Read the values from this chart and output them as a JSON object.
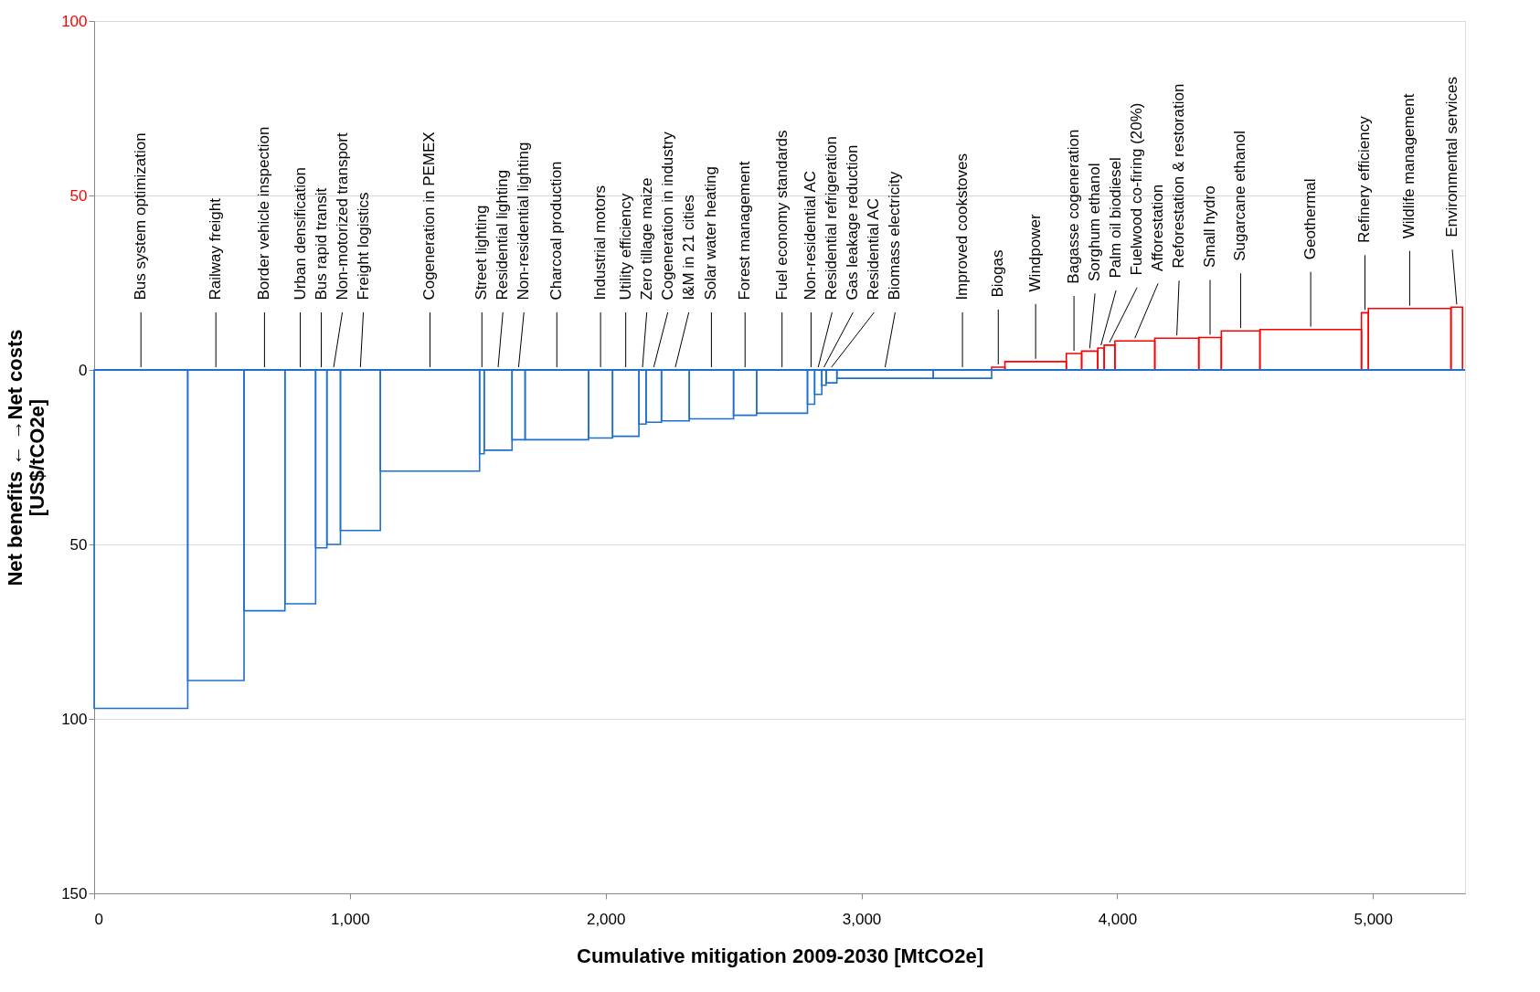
{
  "chart_data": {
    "type": "bar",
    "xlabel": "Cumulative mitigation 2009-2030 [MtCO2e]",
    "ylabel": "Net benefits ←      →Net costs\n[US$/tCO2e]",
    "x": [
      183,
      476,
      666,
      806,
      888,
      936.5,
      1041,
      1313,
      1516,
      1579.5,
      1659.5,
      1809,
      1980,
      2078.5,
      2144,
      2188,
      2272.5,
      2413.5,
      2545,
      2689.5,
      2803,
      2831,
      2853.5,
      2883,
      3092.5,
      3395,
      3535,
      3681,
      3831,
      3892.5,
      3936.5,
      3970,
      4069,
      4233,
      4363,
      4482.5,
      4756.5,
      4968.5,
      5143.5,
      5327.5
    ],
    "values": [
      -97,
      -89,
      -69,
      -67,
      -51,
      -50,
      -46,
      -29,
      -24,
      -23,
      -20,
      -20,
      -19.5,
      -19,
      -15.5,
      -15,
      -14.6,
      -14,
      -13,
      -12.4,
      -9.8,
      -7,
      -4.4,
      -3.7,
      -2.4,
      -2.4,
      0.8,
      2.4,
      4.7,
      5.4,
      6.3,
      7.1,
      8.3,
      9.1,
      9.3,
      11.2,
      11.6,
      16.4,
      17.6,
      18
    ],
    "colors": [
      "#1f6fcc",
      "#1f6fcc",
      "#1f6fcc",
      "#1f6fcc",
      "#1f6fcc",
      "#1f6fcc",
      "#1f6fcc",
      "#1f6fcc",
      "#1f6fcc",
      "#1f6fcc",
      "#1f6fcc",
      "#1f6fcc",
      "#1f6fcc",
      "#1f6fcc",
      "#1f6fcc",
      "#1f6fcc",
      "#1f6fcc",
      "#1f6fcc",
      "#1f6fcc",
      "#1f6fcc",
      "#1f6fcc",
      "#1f6fcc",
      "#1f6fcc",
      "#1f6fcc",
      "#1f6fcc",
      "#1f6fcc",
      "#ff0000",
      "#ff0000",
      "#ff0000",
      "#ff0000",
      "#ff0000",
      "#ff0000",
      "#ff0000",
      "#ff0000",
      "#ff0000",
      "#ff0000",
      "#ff0000",
      "#ff0000",
      "#ff0000",
      "#ff0000"
    ],
    "xlim": [
      0,
      5360
    ],
    "xticks": [
      0,
      {
        "value": 1000,
        "label": "1,000"
      },
      {
        "value": 2000,
        "label": "2,000"
      },
      {
        "value": 3000,
        "label": "3,000"
      },
      {
        "value": 4000,
        "label": "4,000"
      },
      {
        "value": 5000,
        "label": "5,000"
      }
    ],
    "ylim": [
      -150,
      100
    ],
    "yticks": [
      {
        "value": -150,
        "label": "150"
      },
      {
        "value": -100,
        "label": "100"
      },
      {
        "value": -50,
        "label": "50"
      },
      0,
      50,
      100
    ],
    "ref_lines": [
      {
        "axis": "y",
        "value": 0,
        "color": "#1f6fcc"
      }
    ],
    "grid": "y",
    "annotations": [
      {
        "text": "Bus system optimization",
        "x": 183,
        "y": 0
      },
      {
        "text": "Railway freight",
        "x": 476,
        "y": 0
      },
      {
        "text": "Border vehicle inspection",
        "x": 666,
        "y": 0
      },
      {
        "text": "Urban densification",
        "x": 806,
        "y": 0
      },
      {
        "text": "Bus rapid transit",
        "x": 888,
        "y": 0
      },
      {
        "text": "Non-motorized transport",
        "x": 936.5,
        "y": 0
      },
      {
        "text": "Freight logistics",
        "x": 1041,
        "y": 0
      },
      {
        "text": "Cogeneration in PEMEX",
        "x": 1313,
        "y": 0
      },
      {
        "text": "Street lighting",
        "x": 1516,
        "y": 0
      },
      {
        "text": "Residential lighting",
        "x": 1579.5,
        "y": 0
      },
      {
        "text": "Non-residential lighting",
        "x": 1659.5,
        "y": 0
      },
      {
        "text": "Charcoal production",
        "x": 1809,
        "y": 0
      },
      {
        "text": "Industrial motors",
        "x": 1980,
        "y": 0
      },
      {
        "text": "Utility efficiency",
        "x": 2078.5,
        "y": 0
      },
      {
        "text": "Zero tillage maize",
        "x": 2144,
        "y": 0
      },
      {
        "text": "Cogeneration in industry",
        "x": 2188,
        "y": 0
      },
      {
        "text": "I&M in 21 cities",
        "x": 2272.5,
        "y": 0
      },
      {
        "text": "Solar water heating",
        "x": 2413.5,
        "y": 0
      },
      {
        "text": "Forest management",
        "x": 2545,
        "y": 0
      },
      {
        "text": "Fuel economy standards",
        "x": 2689.5,
        "y": 0
      },
      {
        "text": "Non-residential AC",
        "x": 2803,
        "y": 0
      },
      {
        "text": "Residential refrigeration",
        "x": 2831,
        "y": 0
      },
      {
        "text": "Gas leakage reduction",
        "x": 2853.5,
        "y": 0
      },
      {
        "text": "Residential AC",
        "x": 2883,
        "y": 0
      },
      {
        "text": "Biomass electricity",
        "x": 3092.5,
        "y": 0
      },
      {
        "text": "Improved cookstoves",
        "x": 3395,
        "y": 0
      },
      {
        "text": "Biogas",
        "x": 3535,
        "y": 0.8
      },
      {
        "text": "Windpower",
        "x": 3681,
        "y": 2.4
      },
      {
        "text": "Bagasse cogeneration",
        "x": 3831,
        "y": 4.7
      },
      {
        "text": "Sorghum ethanol",
        "x": 3892.5,
        "y": 5.4
      },
      {
        "text": "Palm oil biodiesel",
        "x": 3936.5,
        "y": 6.3
      },
      {
        "text": "Fuelwood co-firing (20%)",
        "x": 3970,
        "y": 7.1
      },
      {
        "text": "Afforestation",
        "x": 4069,
        "y": 8.3
      },
      {
        "text": "Reforestation & restoration",
        "x": 4233,
        "y": 9.1
      },
      {
        "text": "Small hydro",
        "x": 4363,
        "y": 9.3
      },
      {
        "text": "Sugarcane ethanol",
        "x": 4482.5,
        "y": 11.2
      },
      {
        "text": "Geothermal",
        "x": 4756.5,
        "y": 11.6
      },
      {
        "text": "Refinery efficiency",
        "x": 4968.5,
        "y": 16.4
      },
      {
        "text": "Wildlife management",
        "x": 5143.5,
        "y": 17.6
      },
      {
        "text": "Environmental services",
        "x": 5327.5,
        "y": 18
      }
    ]
  }
}
